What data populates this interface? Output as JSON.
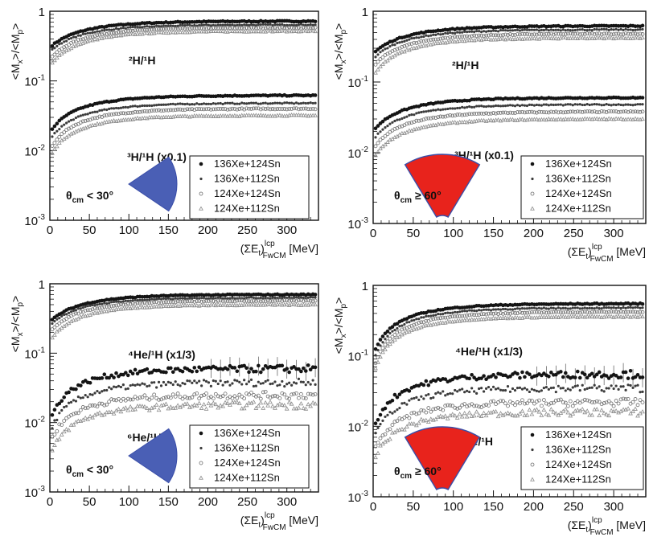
{
  "colors": {
    "series_dark": "#141414",
    "series_mid": "#3c3c3c",
    "series_open": "#6e6e6e",
    "series_light": "#8c8c8c",
    "wedge_forward": "#4a5fb5",
    "wedge_backward": "#e8231c",
    "wedge_edge": "#3a4ea8"
  },
  "legend_entries": [
    "136Xe+124Sn",
    "136Xe+112Sn",
    "124Xe+124Sn",
    "124Xe+112Sn"
  ],
  "x_unit": "[MeV]",
  "chart_data": [
    {
      "type": "scatter",
      "id": "p1",
      "ylabel": "<M_x>/<M_p>",
      "xlabel": "(ΣE_t)^lcp_FwCM [MeV]",
      "xlim": [
        0,
        340
      ],
      "ylim": [
        0.001,
        1
      ],
      "yscale": "log",
      "x_ticks": [
        0,
        50,
        100,
        150,
        200,
        250,
        300
      ],
      "y_ticks": [
        0.001,
        0.01,
        0.1,
        1
      ],
      "annotations": [
        "²H/¹H",
        "³H/¹H (x0.1)"
      ],
      "angle_label": "θcm < 30°",
      "wedge": "forward",
      "groups": [
        {
          "label": "²H/¹H",
          "series": [
            {
              "name": "136Xe+124Sn",
              "y0": 0.3,
              "y1": 0.72
            },
            {
              "name": "136Xe+112Sn",
              "y0": 0.26,
              "y1": 0.64
            },
            {
              "name": "124Xe+124Sn",
              "y0": 0.2,
              "y1": 0.58
            },
            {
              "name": "124Xe+112Sn",
              "y0": 0.16,
              "y1": 0.52
            }
          ]
        },
        {
          "label": "³H/¹H (x0.1)",
          "series": [
            {
              "name": "136Xe+124Sn",
              "y0": 0.018,
              "y1": 0.062
            },
            {
              "name": "136Xe+112Sn",
              "y0": 0.014,
              "y1": 0.048
            },
            {
              "name": "124Xe+124Sn",
              "y0": 0.01,
              "y1": 0.04
            },
            {
              "name": "124Xe+112Sn",
              "y0": 0.008,
              "y1": 0.032
            }
          ]
        }
      ]
    },
    {
      "type": "scatter",
      "id": "p2",
      "ylabel": "<M_x>/<M_p>",
      "xlabel": "(ΣE_t)^lcp_FwCM [MeV]",
      "xlim": [
        0,
        340
      ],
      "ylim": [
        0.001,
        1
      ],
      "yscale": "log",
      "x_ticks": [
        0,
        50,
        100,
        150,
        200,
        250,
        300
      ],
      "y_ticks": [
        0.001,
        0.01,
        0.1,
        1
      ],
      "annotations": [
        "²H/¹H",
        "³H/¹H (x0.1)"
      ],
      "angle_label": "θcm ≥ 60°",
      "wedge": "backward",
      "groups": [
        {
          "label": "²H/¹H",
          "series": [
            {
              "name": "136Xe+124Sn",
              "y0": 0.25,
              "y1": 0.62
            },
            {
              "name": "136Xe+112Sn",
              "y0": 0.21,
              "y1": 0.55
            },
            {
              "name": "124Xe+124Sn",
              "y0": 0.16,
              "y1": 0.48
            },
            {
              "name": "124Xe+112Sn",
              "y0": 0.12,
              "y1": 0.42
            }
          ]
        },
        {
          "label": "³H/¹H (x0.1)",
          "series": [
            {
              "name": "136Xe+124Sn",
              "y0": 0.02,
              "y1": 0.06
            },
            {
              "name": "136Xe+112Sn",
              "y0": 0.015,
              "y1": 0.048
            },
            {
              "name": "124Xe+124Sn",
              "y0": 0.011,
              "y1": 0.038
            },
            {
              "name": "124Xe+112Sn",
              "y0": 0.008,
              "y1": 0.03
            }
          ]
        }
      ]
    },
    {
      "type": "scatter",
      "id": "p3",
      "ylabel": "<M_x>/<M_p>",
      "xlabel": "(ΣE_t)^lcp_FwCM [MeV]",
      "xlim": [
        0,
        340
      ],
      "ylim": [
        0.001,
        1
      ],
      "yscale": "log",
      "x_ticks": [
        0,
        50,
        100,
        150,
        200,
        250,
        300
      ],
      "y_ticks": [
        0.001,
        0.01,
        0.1,
        1
      ],
      "annotations": [
        "⁴He/¹H (x1/3)",
        "⁶He/¹H"
      ],
      "angle_label": "θcm < 30°",
      "wedge": "forward",
      "groups": [
        {
          "label": "⁴He/¹H (x1/3)",
          "series": [
            {
              "name": "136Xe+124Sn",
              "y0": 0.28,
              "y1": 0.7
            },
            {
              "name": "136Xe+112Sn",
              "y0": 0.25,
              "y1": 0.63
            },
            {
              "name": "124Xe+124Sn",
              "y0": 0.2,
              "y1": 0.57
            },
            {
              "name": "124Xe+112Sn",
              "y0": 0.15,
              "y1": 0.5
            }
          ]
        },
        {
          "label": "⁶He/¹H",
          "series": [
            {
              "name": "136Xe+124Sn",
              "y0": 0.01,
              "y1": 0.06
            },
            {
              "name": "136Xe+112Sn",
              "y0": 0.007,
              "y1": 0.038
            },
            {
              "name": "124Xe+124Sn",
              "y0": 0.005,
              "y1": 0.025
            },
            {
              "name": "124Xe+112Sn",
              "y0": 0.003,
              "y1": 0.018
            }
          ]
        }
      ]
    },
    {
      "type": "scatter",
      "id": "p4",
      "ylabel": "<M_x>/<M_p>",
      "xlabel": "(ΣE_t)^lcp_FwCM [MeV]",
      "xlim": [
        0,
        340
      ],
      "ylim": [
        0.001,
        1
      ],
      "yscale": "log",
      "x_ticks": [
        0,
        50,
        100,
        150,
        200,
        250,
        300
      ],
      "y_ticks": [
        0.001,
        0.01,
        0.1,
        1
      ],
      "annotations": [
        "⁴He/¹H (x1/3)",
        "⁶He/¹H"
      ],
      "angle_label": "θcm ≥ 60°",
      "wedge": "backward",
      "groups": [
        {
          "label": "⁴He/¹H (x1/3)",
          "series": [
            {
              "name": "136Xe+124Sn",
              "y0": 0.1,
              "y1": 0.55
            },
            {
              "name": "136Xe+112Sn",
              "y0": 0.08,
              "y1": 0.48
            },
            {
              "name": "124Xe+124Sn",
              "y0": 0.06,
              "y1": 0.42
            },
            {
              "name": "124Xe+112Sn",
              "y0": 0.05,
              "y1": 0.36
            }
          ]
        },
        {
          "label": "⁶He/¹H",
          "series": [
            {
              "name": "136Xe+124Sn",
              "y0": 0.008,
              "y1": 0.055
            },
            {
              "name": "136Xe+112Sn",
              "y0": 0.006,
              "y1": 0.035
            },
            {
              "name": "124Xe+124Sn",
              "y0": 0.004,
              "y1": 0.022
            },
            {
              "name": "124Xe+112Sn",
              "y0": 0.003,
              "y1": 0.016
            }
          ]
        }
      ]
    }
  ]
}
